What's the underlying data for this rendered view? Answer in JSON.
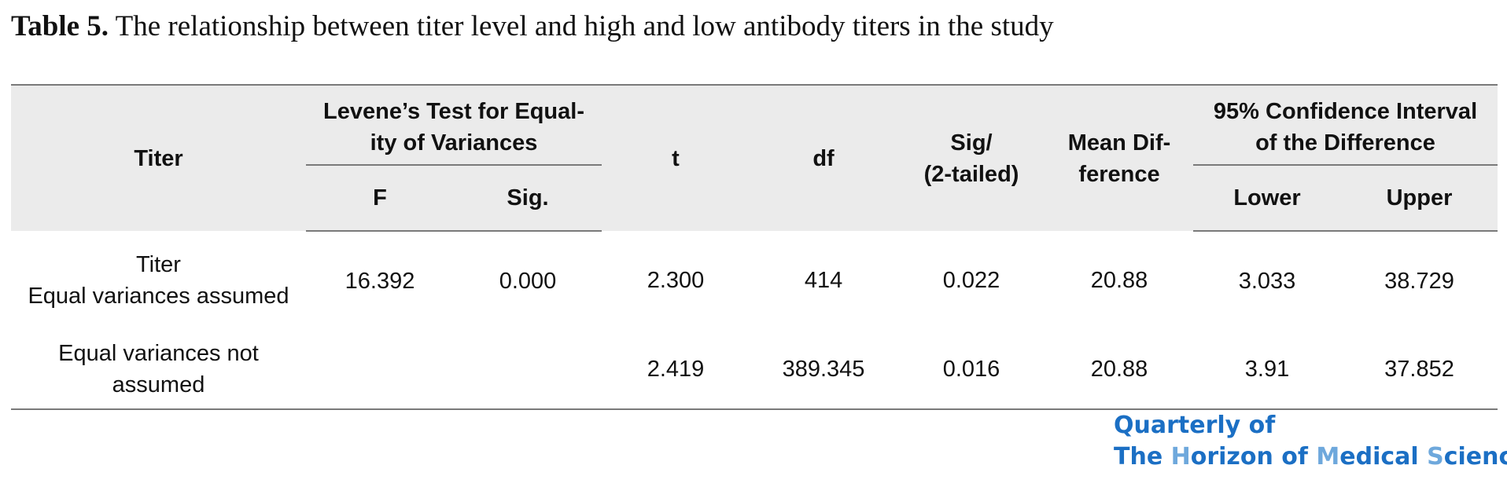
{
  "caption": {
    "label": "Table 5.",
    "text": "The relationship between titer level and high and low antibody titers in the study"
  },
  "table": {
    "headers": {
      "titer": "Titer",
      "levene_group_line1": "Levene’s Test for Equal-",
      "levene_group_line2": "ity of Variances",
      "f": "F",
      "sig": "Sig.",
      "t": "t",
      "df": "df",
      "sig2_line1": "Sig/",
      "sig2_line2": "(2-tailed)",
      "mean_diff_line1": "Mean Dif-",
      "mean_diff_line2": "ference",
      "ci_group_line1": "95% Confidence Interval",
      "ci_group_line2": "of the Difference",
      "lower": "Lower",
      "upper": "Upper"
    },
    "rows": [
      {
        "label_line1": "Titer",
        "label_line2": "Equal variances assumed",
        "f": "16.392",
        "sig": "0.000",
        "t": "2.300",
        "df": "414",
        "sig2": "0.022",
        "mean_diff": "20.88",
        "lower": "3.033",
        "upper": "38.729"
      },
      {
        "label_line1": "Equal variances not",
        "label_line2": "assumed",
        "f": "",
        "sig": "",
        "t": "2.419",
        "df": "389.345",
        "sig2": "0.016",
        "mean_diff": "20.88",
        "lower": "3.91",
        "upper": "37.852"
      }
    ]
  },
  "logo": {
    "line1": "Quarterly of",
    "line2_part1": "The ",
    "line2_h": "H",
    "line2_part2": "orizon of ",
    "line2_m": "M",
    "line2_part3": "edical ",
    "line2_s": "S",
    "line2_part4": "ciences",
    "primary_color": "#1b6fc4",
    "accent_color": "#6ea8dc"
  }
}
